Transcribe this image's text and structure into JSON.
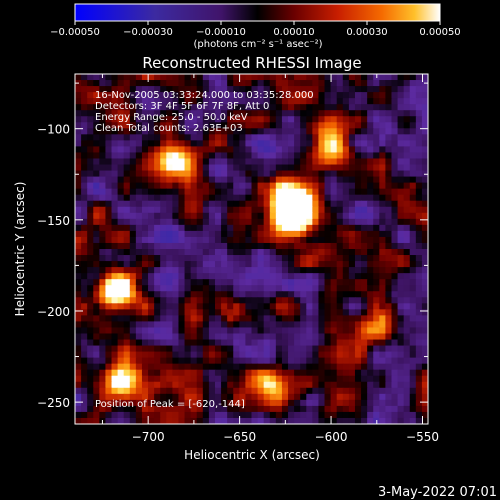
{
  "chart_data": {
    "type": "heatmap",
    "title": "Reconstructed RHESSI Image",
    "xlabel": "Heliocentric X (arcsec)",
    "ylabel": "Heliocentric Y (arcsec)",
    "xlim": [
      -740,
      -547
    ],
    "ylim": [
      -262,
      -70
    ],
    "x_ticks": [
      -700,
      -650,
      -600,
      -550
    ],
    "x_tick_labels": [
      "−700",
      "−650",
      "−600",
      "−550"
    ],
    "y_ticks": [
      -250,
      -200,
      -150,
      -100
    ],
    "y_tick_labels": [
      "−250",
      "−200",
      "−150",
      "−100"
    ],
    "colorbar": {
      "min": -0.0005,
      "max": 0.0005,
      "ticks": [
        -0.0005,
        -0.0003,
        -0.0001,
        0.0001,
        0.0003,
        0.0005
      ],
      "tick_labels": [
        "−0.00050",
        "−0.00030",
        "−0.00010",
        "0.00010",
        "0.00030",
        "0.00050"
      ],
      "unit_label": "(photons cm⁻² s⁻¹ asec⁻²)"
    },
    "annotations": [
      "16-Nov-2005 03:33:24.000 to 03:35:28.000",
      "Detectors: 3F 4F 5F 6F 7F 8F, Att 0",
      "Energy Range: 25.0 - 50.0 keV",
      "Clean     Total counts: 2.63E+03"
    ],
    "peak_label": "Position of Peak = [-620,-144]",
    "peak": {
      "x": -620,
      "y": -144
    },
    "grid": false,
    "colormap": [
      "#0000ff",
      "#3c2a9c",
      "#5c2aa0",
      "#000000",
      "#6a0000",
      "#b81a00",
      "#ee5a00",
      "#ff9a10",
      "#ffd23c",
      "#ffffff"
    ]
  },
  "footer": {
    "timestamp": "3-May-2022 07:01"
  }
}
